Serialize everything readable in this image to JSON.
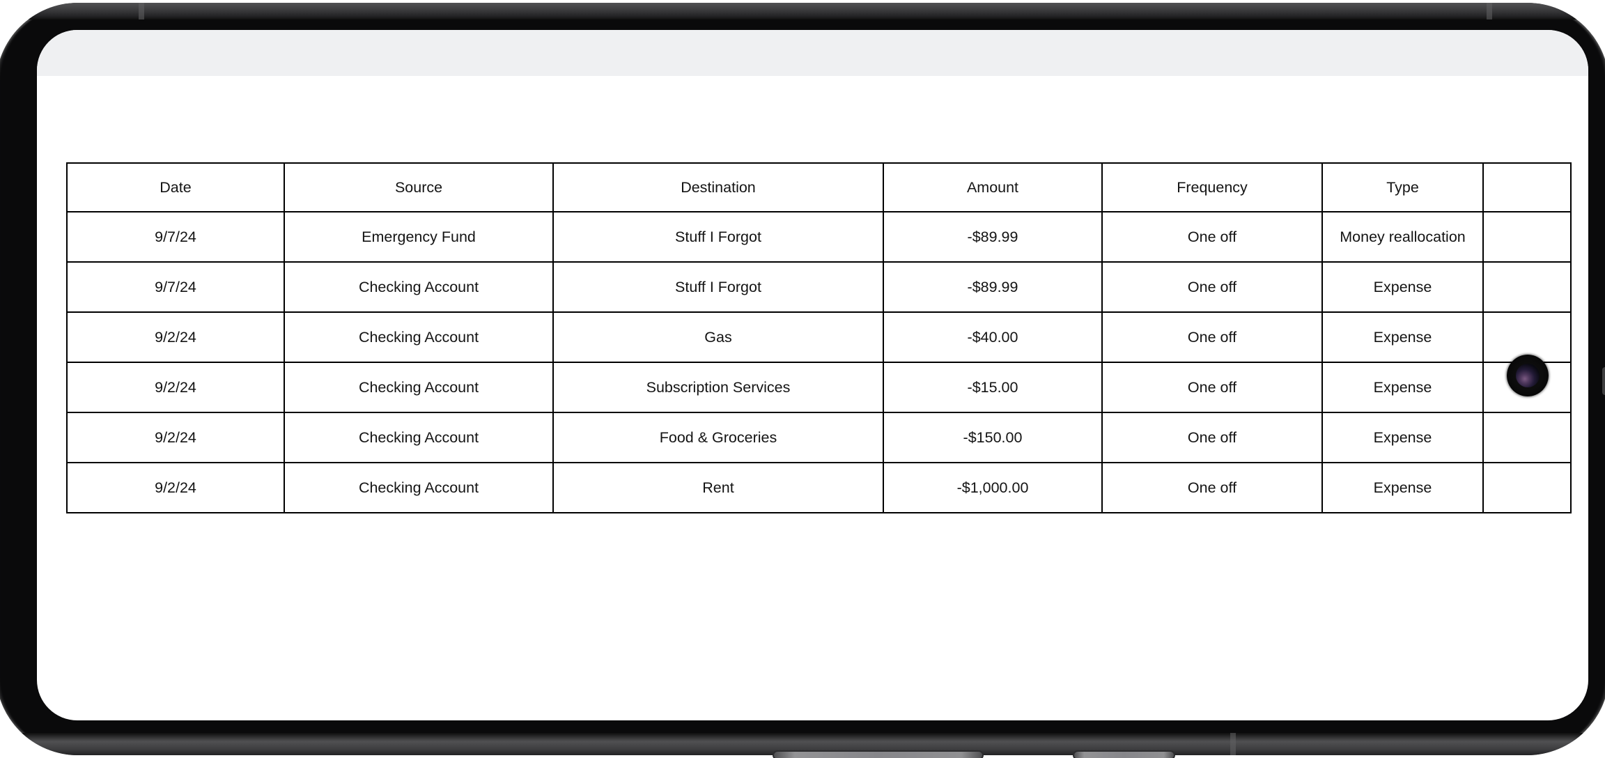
{
  "device": {
    "type": "smartphone-landscape",
    "frame_color": "#0a0a0b",
    "statusbar_color": "#eff0f2",
    "screen_color": "#ffffff"
  },
  "table": {
    "border_color": "#000000",
    "text_color": "#141414",
    "columns": [
      "Date",
      "Source",
      "Destination",
      "Amount",
      "Frequency",
      "Type",
      ""
    ],
    "rows": [
      [
        "9/7/24",
        "Emergency Fund",
        "Stuff I Forgot",
        "-$89.99",
        "One off",
        "Money reallocation",
        ""
      ],
      [
        "9/7/24",
        "Checking Account",
        "Stuff I Forgot",
        "-$89.99",
        "One off",
        "Expense",
        ""
      ],
      [
        "9/2/24",
        "Checking Account",
        "Gas",
        "-$40.00",
        "One off",
        "Expense",
        ""
      ],
      [
        "9/2/24",
        "Checking Account",
        "Subscription Services",
        "-$15.00",
        "One off",
        "Expense",
        ""
      ],
      [
        "9/2/24",
        "Checking Account",
        "Food & Groceries",
        "-$150.00",
        "One off",
        "Expense",
        ""
      ],
      [
        "9/2/24",
        "Checking Account",
        "Rent",
        "-$1,000.00",
        "One off",
        "Expense",
        ""
      ]
    ]
  }
}
